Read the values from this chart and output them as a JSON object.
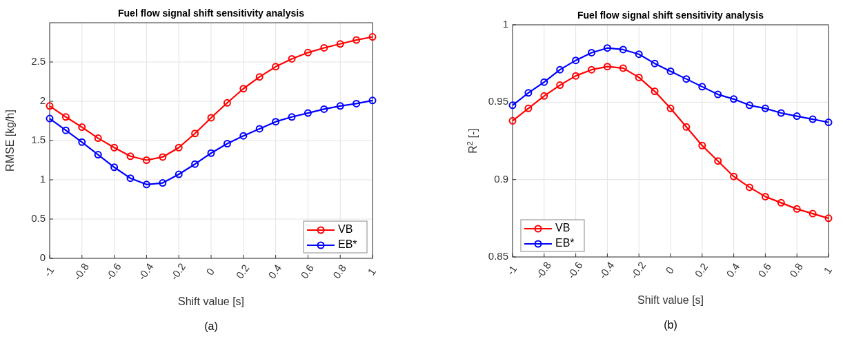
{
  "chart_data": [
    {
      "type": "line",
      "title": "Fuel flow signal shift sensitivity analysis",
      "xlabel": "Shift value [s]",
      "ylabel": "RMSE [kg/h]",
      "annotations": [
        "(a)"
      ],
      "x": [
        -1,
        -0.9,
        -0.8,
        -0.7,
        -0.6,
        -0.5,
        -0.4,
        -0.3,
        -0.2,
        -0.1,
        0,
        0.1,
        0.2,
        0.3,
        0.4,
        0.5,
        0.6,
        0.7,
        0.8,
        0.9,
        1
      ],
      "series": [
        {
          "name": "VB",
          "color": "#ff0000",
          "values": [
            1.94,
            1.8,
            1.67,
            1.53,
            1.41,
            1.3,
            1.25,
            1.29,
            1.41,
            1.59,
            1.79,
            1.98,
            2.16,
            2.31,
            2.44,
            2.54,
            2.62,
            2.68,
            2.73,
            2.78,
            2.82
          ]
        },
        {
          "name": "EB*",
          "color": "#0000ff",
          "values": [
            1.78,
            1.63,
            1.48,
            1.32,
            1.16,
            1.02,
            0.94,
            0.96,
            1.07,
            1.2,
            1.34,
            1.46,
            1.56,
            1.65,
            1.74,
            1.8,
            1.85,
            1.9,
            1.94,
            1.97,
            2.01
          ]
        }
      ],
      "xlim": [
        -1,
        1
      ],
      "xticks": [
        -1,
        -0.8,
        -0.6,
        -0.4,
        -0.2,
        0,
        0.2,
        0.4,
        0.6,
        0.8,
        1
      ],
      "ylim": [
        0,
        3
      ],
      "yticks": [
        0,
        0.5,
        1,
        1.5,
        2,
        2.5
      ],
      "grid": true,
      "legend": "bottom right",
      "marker": "circle",
      "line_style": "solid"
    },
    {
      "type": "line",
      "title": "Fuel flow signal shift sensitivity analysis",
      "xlabel": "Shift value [s]",
      "ylabel": "R$^{2}$ [-]",
      "annotations": [
        "(b)"
      ],
      "x": [
        -1,
        -0.9,
        -0.8,
        -0.7,
        -0.6,
        -0.5,
        -0.4,
        -0.3,
        -0.2,
        -0.1,
        0,
        0.1,
        0.2,
        0.3,
        0.4,
        0.5,
        0.6,
        0.7,
        0.8,
        0.9,
        1
      ],
      "series": [
        {
          "name": "VB",
          "color": "#ff0000",
          "values": [
            0.938,
            0.946,
            0.954,
            0.961,
            0.967,
            0.971,
            0.973,
            0.972,
            0.966,
            0.957,
            0.946,
            0.934,
            0.922,
            0.912,
            0.902,
            0.895,
            0.889,
            0.885,
            0.881,
            0.878,
            0.875
          ]
        },
        {
          "name": "EB*",
          "color": "#0000ff",
          "values": [
            0.948,
            0.956,
            0.963,
            0.971,
            0.977,
            0.982,
            0.985,
            0.984,
            0.981,
            0.975,
            0.97,
            0.965,
            0.96,
            0.955,
            0.952,
            0.948,
            0.946,
            0.943,
            0.941,
            0.939,
            0.937
          ]
        }
      ],
      "xlim": [
        -1,
        1
      ],
      "xticks": [
        -1,
        -0.8,
        -0.6,
        -0.4,
        -0.2,
        0,
        0.2,
        0.4,
        0.6,
        0.8,
        1
      ],
      "ylim": [
        0.85,
        1
      ],
      "yticks": [
        0.85,
        0.9,
        0.95,
        1
      ],
      "grid": true,
      "legend": "bottom left",
      "marker": "circle",
      "line_style": "solid"
    }
  ]
}
